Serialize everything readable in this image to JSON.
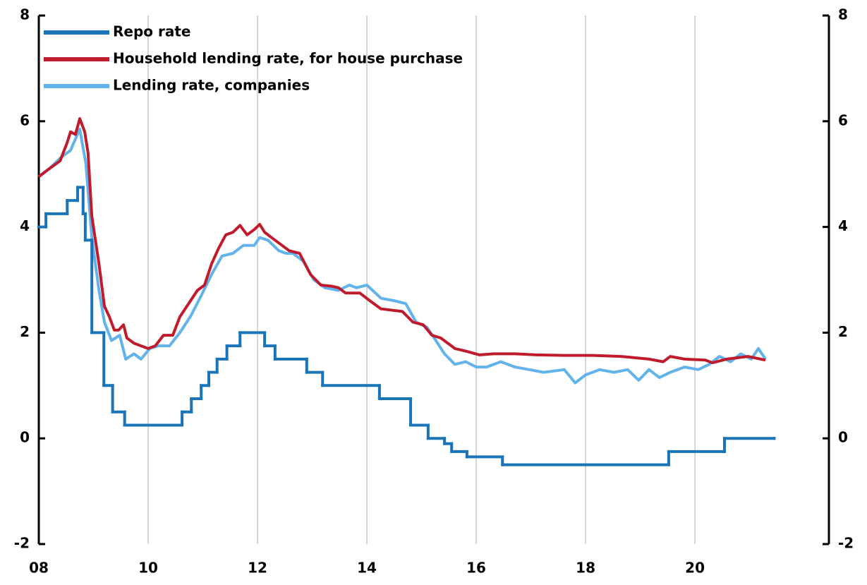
{
  "chart_data": {
    "type": "line",
    "xlim": [
      8,
      22.45
    ],
    "xticks": [
      {
        "value": 8,
        "label": "08"
      },
      10,
      12,
      14,
      16,
      18,
      20
    ],
    "ylim": [
      -2,
      8
    ],
    "yticks": [
      -2,
      0,
      2,
      4,
      6,
      8
    ],
    "y2lim": [
      -2,
      8
    ],
    "y2ticks": [
      -2,
      0,
      2,
      4,
      6,
      8
    ],
    "grid": "x",
    "legend": "upper left",
    "series": [
      {
        "name": "Repo rate",
        "color": "#1a74b8",
        "drawstyle": "steps-post",
        "x": [
          8.0,
          8.13,
          8.52,
          8.71,
          8.81,
          8.85,
          8.97,
          9.19,
          9.35,
          9.57,
          10.62,
          10.79,
          10.97,
          11.11,
          11.26,
          11.44,
          11.68,
          12.13,
          12.32,
          12.9,
          13.19,
          14.23,
          14.8,
          15.12,
          15.42,
          15.55,
          15.83,
          16.48,
          19.52,
          20.54,
          21.45
        ],
        "values": [
          4,
          4.25,
          4.5,
          4.75,
          4.25,
          3.75,
          2,
          1,
          0.5,
          0.25,
          0.5,
          0.75,
          1,
          1.25,
          1.5,
          1.75,
          2,
          1.75,
          1.5,
          1.25,
          1,
          0.75,
          0.25,
          0,
          -0.1,
          -0.25,
          -0.35,
          -0.5,
          -0.25,
          0,
          0
        ]
      },
      {
        "name": "Household lending rate, for house purchase",
        "color": "#c01b2c",
        "x": [
          8.0,
          8.19,
          8.39,
          8.52,
          8.58,
          8.67,
          8.75,
          8.84,
          8.9,
          8.97,
          9.1,
          9.2,
          9.29,
          9.38,
          9.46,
          9.55,
          9.61,
          9.74,
          9.87,
          10.0,
          10.13,
          10.28,
          10.45,
          10.58,
          10.71,
          10.9,
          11.03,
          11.16,
          11.29,
          11.42,
          11.55,
          11.68,
          11.81,
          11.94,
          12.04,
          12.13,
          12.32,
          12.45,
          12.58,
          12.77,
          12.97,
          13.16,
          13.35,
          13.48,
          13.61,
          13.87,
          14.06,
          14.26,
          14.65,
          14.84,
          15.03,
          15.19,
          15.35,
          15.48,
          15.61,
          15.81,
          16.06,
          16.32,
          16.71,
          17.1,
          17.61,
          18.13,
          18.65,
          19.16,
          19.42,
          19.55,
          19.81,
          20.19,
          20.32,
          20.58,
          20.97,
          21.29
        ],
        "values": [
          4.95,
          5.1,
          5.25,
          5.6,
          5.8,
          5.75,
          6.05,
          5.8,
          5.4,
          4.2,
          3.3,
          2.5,
          2.3,
          2.05,
          2.05,
          2.15,
          1.9,
          1.8,
          1.75,
          1.7,
          1.75,
          1.95,
          1.95,
          2.3,
          2.5,
          2.8,
          2.9,
          3.3,
          3.6,
          3.85,
          3.9,
          4.03,
          3.85,
          3.95,
          4.05,
          3.9,
          3.75,
          3.65,
          3.55,
          3.5,
          3.1,
          2.9,
          2.88,
          2.85,
          2.75,
          2.75,
          2.6,
          2.45,
          2.4,
          2.2,
          2.15,
          1.95,
          1.9,
          1.8,
          1.7,
          1.65,
          1.58,
          1.6,
          1.6,
          1.58,
          1.57,
          1.57,
          1.55,
          1.5,
          1.45,
          1.55,
          1.5,
          1.48,
          1.43,
          1.5,
          1.55,
          1.48
        ]
      },
      {
        "name": "Lending rate, companies",
        "color": "#62b2ec",
        "x": [
          8.0,
          8.19,
          8.39,
          8.58,
          8.75,
          8.86,
          8.97,
          9.1,
          9.2,
          9.33,
          9.48,
          9.59,
          9.74,
          9.87,
          10.03,
          10.19,
          10.39,
          10.58,
          10.77,
          10.97,
          11.16,
          11.35,
          11.55,
          11.74,
          11.94,
          12.04,
          12.19,
          12.39,
          12.52,
          12.65,
          12.84,
          13.03,
          13.23,
          13.48,
          13.68,
          13.81,
          14.0,
          14.26,
          14.52,
          14.71,
          14.9,
          15.1,
          15.23,
          15.42,
          15.61,
          15.81,
          16.0,
          16.19,
          16.45,
          16.71,
          16.97,
          17.23,
          17.61,
          17.81,
          18.0,
          18.26,
          18.52,
          18.77,
          18.97,
          19.16,
          19.35,
          19.55,
          19.81,
          20.06,
          20.26,
          20.45,
          20.65,
          20.84,
          21.03,
          21.16,
          21.29
        ],
        "values": [
          4.95,
          5.1,
          5.3,
          5.45,
          5.85,
          5.2,
          3.8,
          2.8,
          2.2,
          1.85,
          1.95,
          1.5,
          1.6,
          1.5,
          1.7,
          1.75,
          1.75,
          2.0,
          2.3,
          2.7,
          3.1,
          3.45,
          3.5,
          3.65,
          3.65,
          3.8,
          3.75,
          3.55,
          3.5,
          3.5,
          3.35,
          3.0,
          2.85,
          2.8,
          2.9,
          2.85,
          2.9,
          2.65,
          2.6,
          2.55,
          2.2,
          2.1,
          1.9,
          1.6,
          1.4,
          1.45,
          1.35,
          1.35,
          1.45,
          1.35,
          1.3,
          1.25,
          1.3,
          1.05,
          1.2,
          1.3,
          1.25,
          1.3,
          1.1,
          1.3,
          1.15,
          1.25,
          1.35,
          1.3,
          1.4,
          1.55,
          1.45,
          1.6,
          1.5,
          1.7,
          1.5
        ]
      }
    ]
  }
}
